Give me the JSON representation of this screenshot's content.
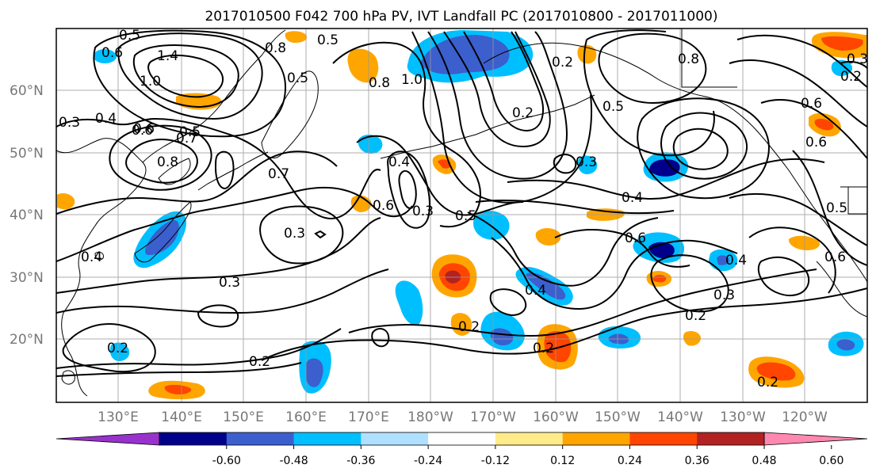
{
  "title": "2017010500 F042 700 hPa PV, IVT Landfall PC (2017010800 - 2017011000)",
  "map": {
    "lat_labels": [
      "60°N",
      "50°N",
      "40°N",
      "30°N",
      "20°N"
    ],
    "lon_labels": [
      "130°E",
      "140°E",
      "150°E",
      "160°E",
      "170°E",
      "180°W",
      "170°W",
      "160°W",
      "150°W",
      "140°W",
      "130°W",
      "120°W"
    ],
    "gridlines": true,
    "contour_labels": [
      "0.5",
      "0.6",
      "1.4",
      "0.5",
      "0.8",
      "0.5",
      "0.5",
      "0.6",
      "1.0",
      "0.8",
      "1.0",
      "0.2",
      "0.2",
      "0.8",
      "0.6",
      "0.4",
      "0.3",
      "0.6",
      "0.7",
      "0.8",
      "0.7",
      "0.4",
      "0.3",
      "0.6",
      "0.5",
      "0.3",
      "0.4",
      "0.6",
      "0.5",
      "0.3",
      "0.4",
      "0.6",
      "0.4",
      "0.2",
      "0.2",
      "0.3",
      "0.2",
      "0.2",
      "0.2",
      "0.2",
      "0.2",
      "0.4",
      "0.5",
      "0.3",
      "0.6",
      "0.3"
    ],
    "colors": {
      "contour": "#000000",
      "coastline": "#000000",
      "grid": "#999999",
      "axis_label": "#777777"
    }
  },
  "colorbar": {
    "labels": [
      "-0.60",
      "-0.48",
      "-0.36",
      "-0.24",
      "-0.12",
      "0.12",
      "0.24",
      "0.36",
      "0.48",
      "0.60"
    ],
    "colors": [
      "#9932cc",
      "#00008b",
      "#3b5fcd",
      "#00bfff",
      "#b0e0ff",
      "#ffffff",
      "#ffeb8a",
      "#ffa500",
      "#ff4500",
      "#b22222",
      "#ff88b0"
    ]
  }
}
